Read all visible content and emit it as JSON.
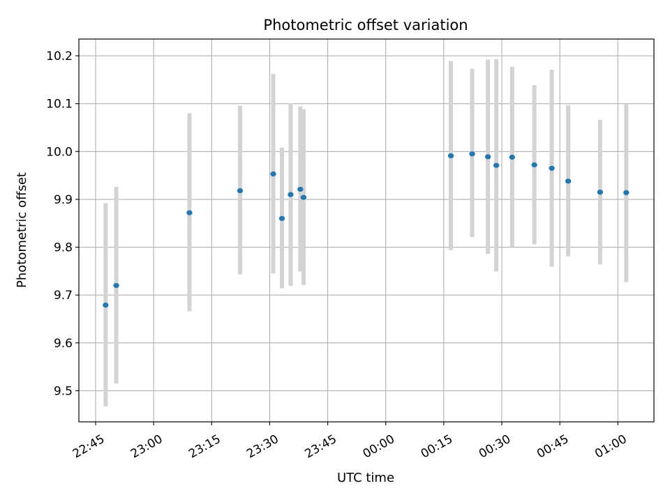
{
  "chart_data": {
    "type": "scatter",
    "title": "Photometric offset variation",
    "xlabel": "UTC time",
    "ylabel": "Photometric offset",
    "grid": true,
    "x_ticks": [
      "22:45",
      "23:00",
      "23:15",
      "23:30",
      "23:45",
      "00:00",
      "00:15",
      "00:30",
      "00:45",
      "01:00"
    ],
    "y_ticks": [
      "9.5",
      "9.6",
      "9.7",
      "9.8",
      "9.9",
      "10.0",
      "10.1",
      "10.2"
    ],
    "ylim": [
      9.435,
      10.235
    ],
    "xlim": [
      "22:40:40",
      "01:09:20"
    ],
    "colors": {
      "points": "#1f77b4",
      "error_bars": "#d3d3d3",
      "grid": "#b0b0b0"
    },
    "series": [
      {
        "points": [
          {
            "x": "22:47:35",
            "y": 9.679,
            "ylow": 9.467,
            "yhigh": 9.892
          },
          {
            "x": "22:50:20",
            "y": 9.72,
            "ylow": 9.515,
            "yhigh": 9.926
          },
          {
            "x": "23:09:15",
            "y": 9.872,
            "ylow": 9.666,
            "yhigh": 10.08
          },
          {
            "x": "23:22:20",
            "y": 9.918,
            "ylow": 9.743,
            "yhigh": 10.096
          },
          {
            "x": "23:30:55",
            "y": 9.953,
            "ylow": 9.745,
            "yhigh": 10.162
          },
          {
            "x": "23:33:10",
            "y": 9.86,
            "ylow": 9.714,
            "yhigh": 10.008
          },
          {
            "x": "23:35:25",
            "y": 9.91,
            "ylow": 9.719,
            "yhigh": 10.101
          },
          {
            "x": "23:37:55",
            "y": 9.921,
            "ylow": 9.749,
            "yhigh": 10.094
          },
          {
            "x": "23:38:45",
            "y": 9.904,
            "ylow": 9.721,
            "yhigh": 10.088
          },
          {
            "x": "00:16:50",
            "y": 9.991,
            "ylow": 9.794,
            "yhigh": 10.189
          },
          {
            "x": "00:22:20",
            "y": 9.995,
            "ylow": 9.821,
            "yhigh": 10.173
          },
          {
            "x": "00:26:25",
            "y": 9.989,
            "ylow": 9.786,
            "yhigh": 10.192
          },
          {
            "x": "00:28:35",
            "y": 9.971,
            "ylow": 9.749,
            "yhigh": 10.193
          },
          {
            "x": "00:32:40",
            "y": 9.988,
            "ylow": 9.8,
            "yhigh": 10.177
          },
          {
            "x": "00:38:25",
            "y": 9.972,
            "ylow": 9.806,
            "yhigh": 10.139
          },
          {
            "x": "00:42:55",
            "y": 9.965,
            "ylow": 9.759,
            "yhigh": 10.171
          },
          {
            "x": "00:47:10",
            "y": 9.938,
            "ylow": 9.781,
            "yhigh": 10.097
          },
          {
            "x": "00:55:25",
            "y": 9.915,
            "ylow": 9.764,
            "yhigh": 10.066
          },
          {
            "x": "01:02:10",
            "y": 9.914,
            "ylow": 9.727,
            "yhigh": 10.1
          }
        ]
      }
    ]
  }
}
